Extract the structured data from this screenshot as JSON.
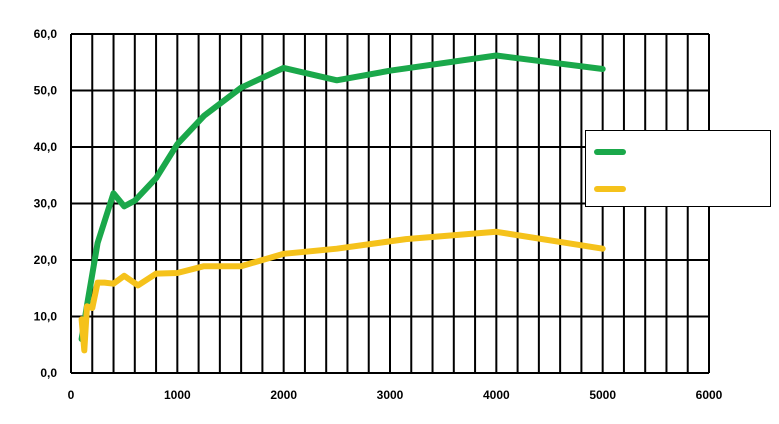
{
  "chart_data": {
    "type": "line",
    "title": "",
    "xlabel": "",
    "ylabel": "",
    "xlim": [
      0,
      6000
    ],
    "ylim": [
      0,
      60
    ],
    "x_ticks": [
      0,
      1000,
      2000,
      3000,
      4000,
      5000,
      6000
    ],
    "x_tick_labels": [
      "0",
      "1000",
      "2000",
      "3000",
      "4000",
      "5000",
      "6000"
    ],
    "y_ticks": [
      0,
      10,
      20,
      30,
      40,
      50,
      60
    ],
    "y_tick_labels": [
      "0,0",
      "10,0",
      "20,0",
      "30,0",
      "40,0",
      "50,0",
      "60,0"
    ],
    "grid": true,
    "legend_position": "right",
    "series": [
      {
        "name": "",
        "color": "#1aa84a",
        "points": [
          [
            100,
            6
          ],
          [
            150,
            12
          ],
          [
            250,
            23
          ],
          [
            400,
            31.8
          ],
          [
            500,
            29.5
          ],
          [
            600,
            30.5
          ],
          [
            800,
            34.5
          ],
          [
            1000,
            40.5
          ],
          [
            1250,
            45.5
          ],
          [
            1600,
            50.5
          ],
          [
            2000,
            54
          ],
          [
            2500,
            51.8
          ],
          [
            3000,
            53.5
          ],
          [
            4000,
            56.2
          ],
          [
            5000,
            53.8
          ]
        ]
      },
      {
        "name": "",
        "color": "#f5c21b",
        "points": [
          [
            100,
            9.5
          ],
          [
            125,
            4
          ],
          [
            150,
            11.8
          ],
          [
            200,
            11.5
          ],
          [
            250,
            16
          ],
          [
            315,
            16
          ],
          [
            400,
            15.8
          ],
          [
            500,
            17.2
          ],
          [
            630,
            15.5
          ],
          [
            800,
            17.6
          ],
          [
            1000,
            17.7
          ],
          [
            1250,
            18.9
          ],
          [
            1600,
            18.9
          ],
          [
            2000,
            21.1
          ],
          [
            2500,
            22
          ],
          [
            3150,
            23.7
          ],
          [
            4000,
            25
          ],
          [
            5000,
            22
          ]
        ]
      }
    ]
  }
}
